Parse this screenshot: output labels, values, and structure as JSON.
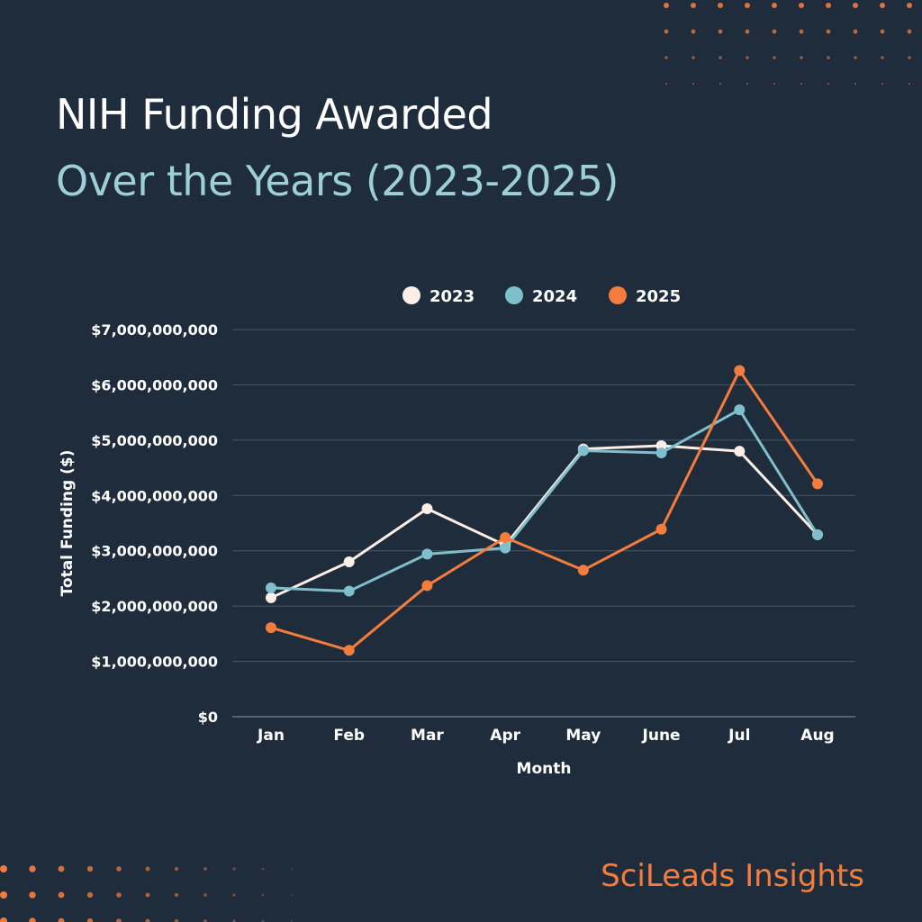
{
  "page": {
    "title_line1": "NIH Funding Awarded",
    "title_line2": "Over the Years (2023-2025)",
    "brand_part1": "SciLeads",
    "brand_part2": "Insights"
  },
  "colors": {
    "background": "#1e2c3b",
    "title_accent": "#9ccfd8",
    "brand_orange": "#f47c3c",
    "series_2023": "#fbeee6",
    "series_2024": "#7fbfcc",
    "series_2025": "#f47c3c",
    "grid": "#4a5868",
    "text": "#ffffff"
  },
  "chart_data": {
    "type": "line",
    "xlabel": "Month",
    "ylabel": "Total Funding ($)",
    "categories": [
      "Jan",
      "Feb",
      "Mar",
      "Apr",
      "May",
      "June",
      "Jul",
      "Aug"
    ],
    "ylim": [
      0,
      7000000000
    ],
    "yticks": [
      0,
      1000000000,
      2000000000,
      3000000000,
      4000000000,
      5000000000,
      6000000000,
      7000000000
    ],
    "ytick_labels": [
      "$0",
      "$1,000,000,000",
      "$2,000,000,000",
      "$3,000,000,000",
      "$4,000,000,000",
      "$5,000,000,000",
      "$6,000,000,000",
      "$7,000,000,000"
    ],
    "grid": true,
    "legend_position": "top-center",
    "series": [
      {
        "name": "2023",
        "color": "#fbeee6",
        "values": [
          2150000000,
          2800000000,
          3760000000,
          3100000000,
          4840000000,
          4900000000,
          4800000000,
          3290000000
        ]
      },
      {
        "name": "2024",
        "color": "#7fbfcc",
        "values": [
          2330000000,
          2270000000,
          2940000000,
          3050000000,
          4810000000,
          4770000000,
          5550000000,
          3290000000
        ]
      },
      {
        "name": "2025",
        "color": "#f47c3c",
        "values": [
          1610000000,
          1200000000,
          2370000000,
          3240000000,
          2650000000,
          3390000000,
          6260000000,
          4210000000
        ]
      }
    ]
  }
}
